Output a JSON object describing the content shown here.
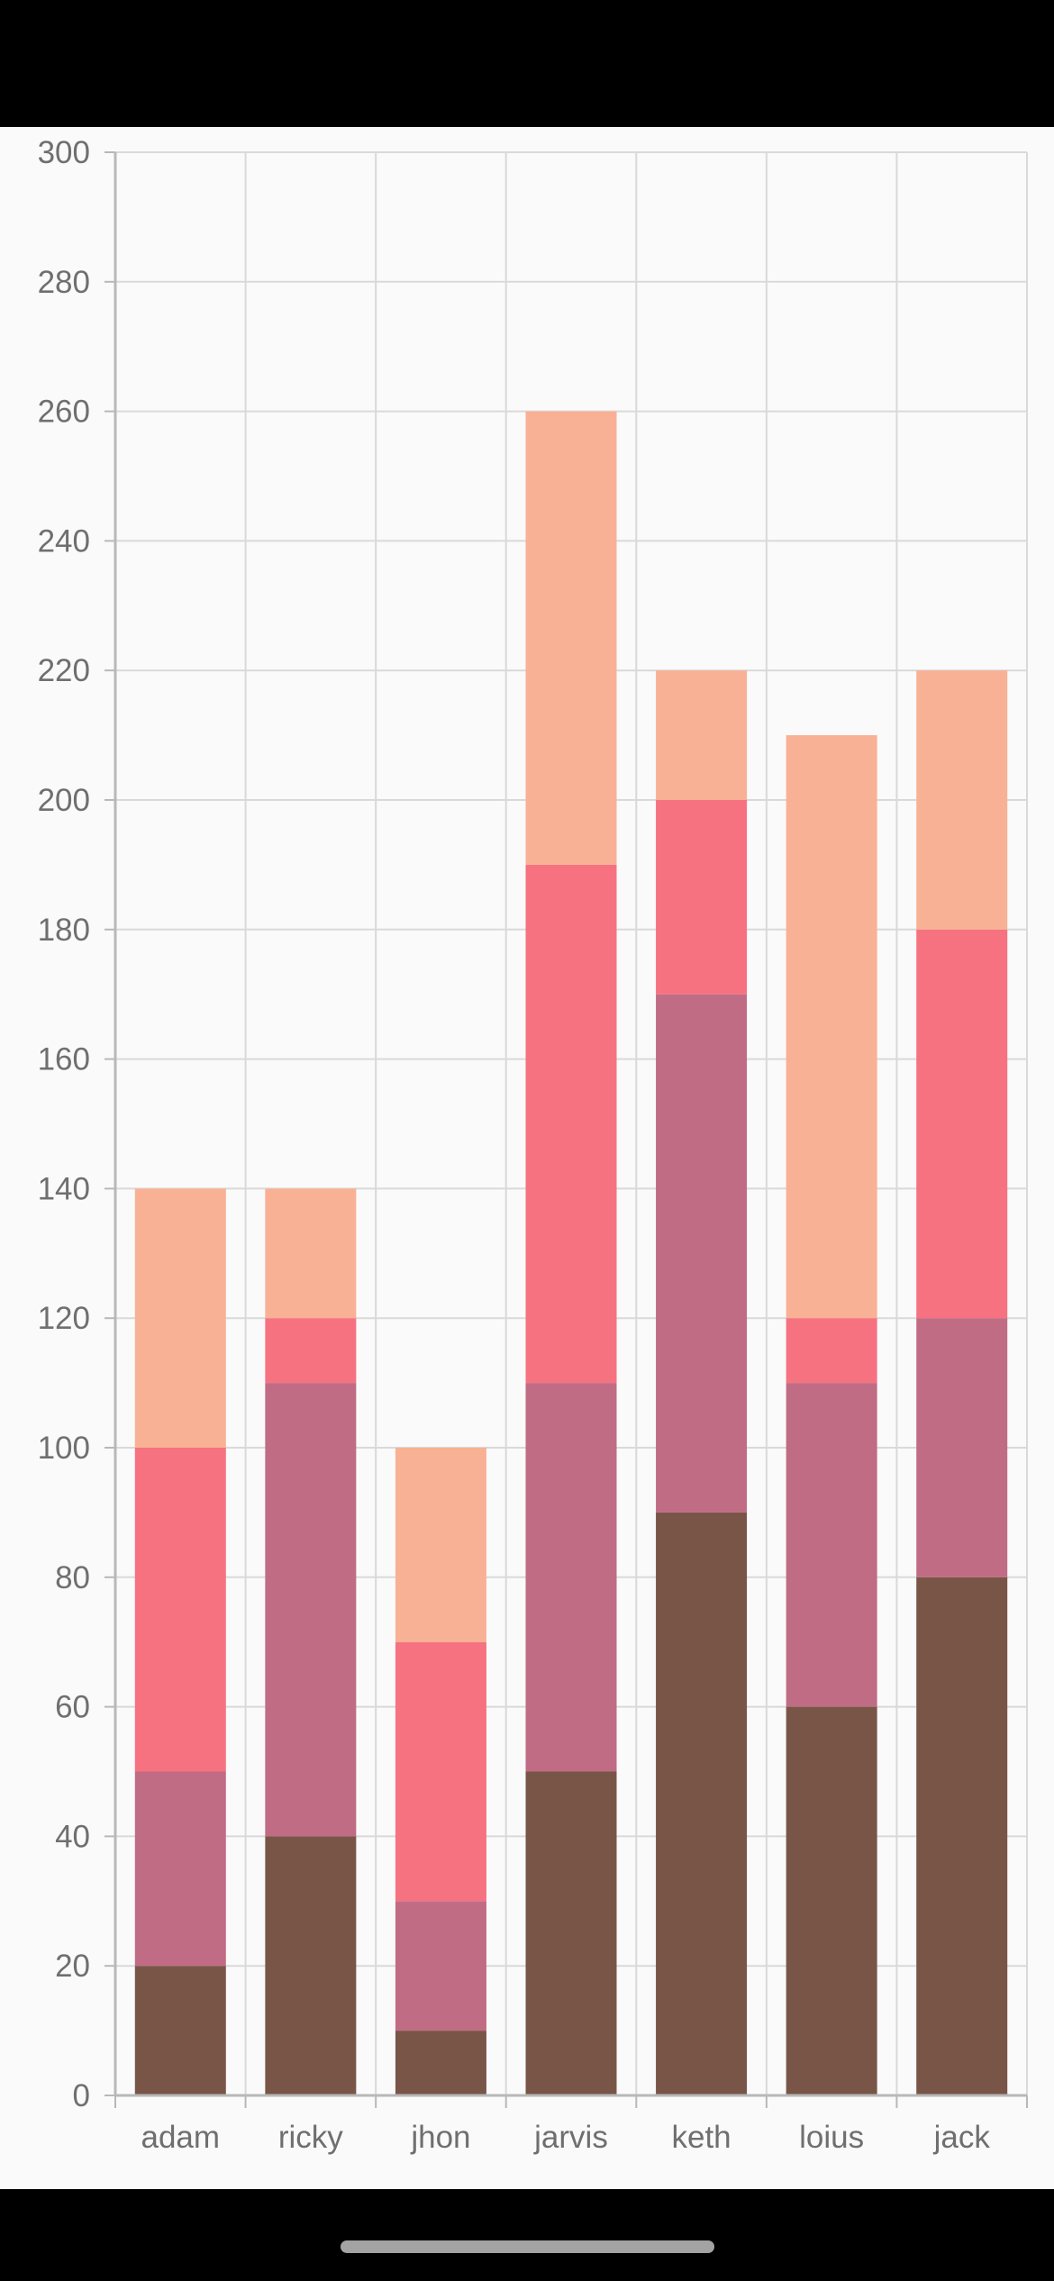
{
  "chart_data": {
    "type": "bar",
    "stacked": true,
    "categories": [
      "adam",
      "ricky",
      "jhon",
      "jarvis",
      "keth",
      "loius",
      "jack"
    ],
    "series": [
      {
        "color": "#795548",
        "values": [
          20,
          40,
          10,
          50,
          90,
          60,
          80
        ]
      },
      {
        "color": "#c06c84",
        "values": [
          30,
          70,
          20,
          60,
          80,
          50,
          40
        ]
      },
      {
        "color": "#f67280",
        "values": [
          50,
          10,
          40,
          80,
          30,
          10,
          60
        ]
      },
      {
        "color": "#f8b195",
        "values": [
          40,
          20,
          30,
          70,
          20,
          90,
          40
        ]
      }
    ],
    "ylim": [
      0,
      300
    ],
    "yticks": [
      "0",
      "20",
      "40",
      "60",
      "80",
      "100",
      "120",
      "140",
      "160",
      "180",
      "200",
      "220",
      "240",
      "260",
      "280",
      "300"
    ],
    "grid": true,
    "legend": "none"
  },
  "colors": {
    "gridline": "#d9d9d9",
    "axis_line": "#b8b8b8",
    "tick_text": "#6f6f6f",
    "plot_background": "#fafafa"
  }
}
